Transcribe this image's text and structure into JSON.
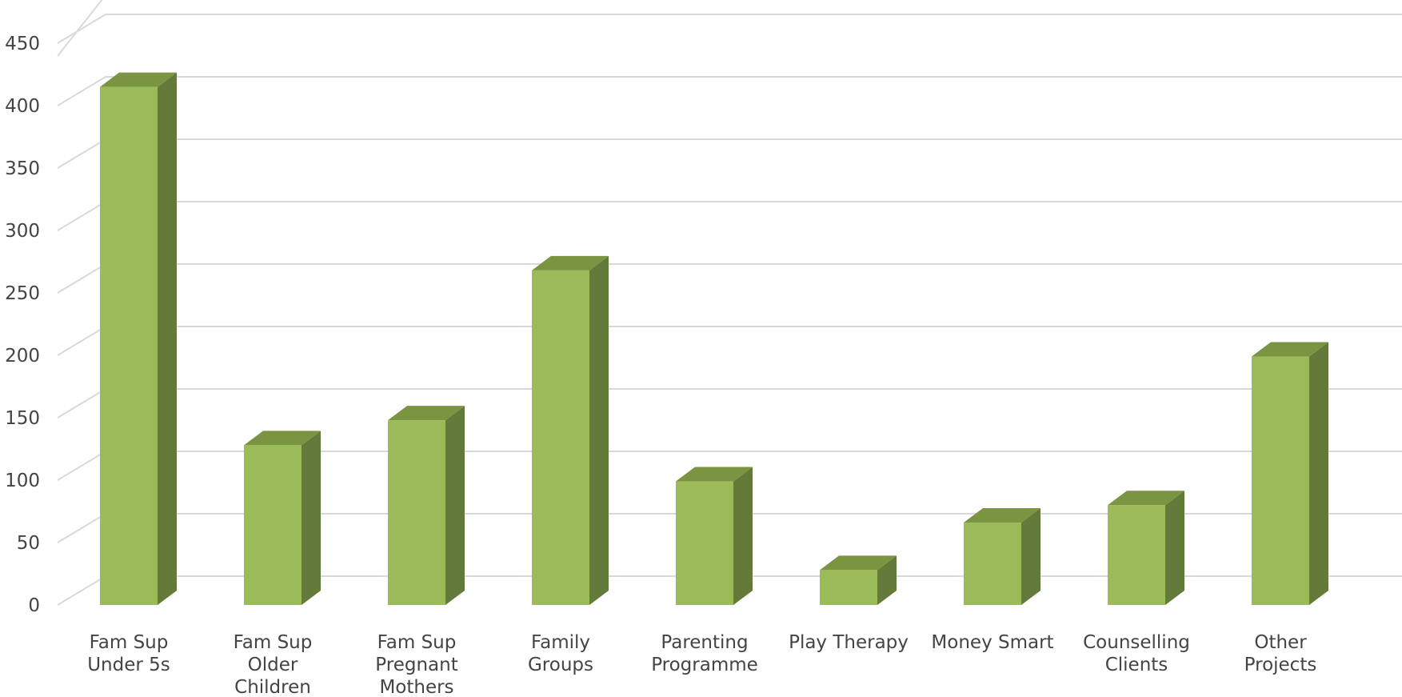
{
  "chart_data": {
    "type": "bar",
    "title": "",
    "xlabel": "",
    "ylabel": "",
    "ylim": [
      0,
      450
    ],
    "yticks": [
      0,
      50,
      100,
      150,
      200,
      250,
      300,
      350,
      400,
      450
    ],
    "grid": true,
    "categories": [
      [
        "Fam Sup",
        "Under 5s"
      ],
      [
        "Fam Sup",
        "Older",
        "Children"
      ],
      [
        "Fam Sup",
        "Pregnant",
        "Mothers"
      ],
      [
        "Family",
        "Groups"
      ],
      [
        "Parenting",
        "Programme"
      ],
      [
        "Play Therapy"
      ],
      [
        "Money Smart"
      ],
      [
        "Counselling",
        "Clients"
      ],
      [
        "Other",
        "Projects"
      ]
    ],
    "values": [
      415,
      128,
      148,
      268,
      99,
      28,
      66,
      80,
      199
    ],
    "colors": {
      "front": "#9bbb59",
      "side": "#647a3a",
      "top": "#7a9442",
      "grid": "#d9d9d9",
      "text": "#444444"
    }
  }
}
